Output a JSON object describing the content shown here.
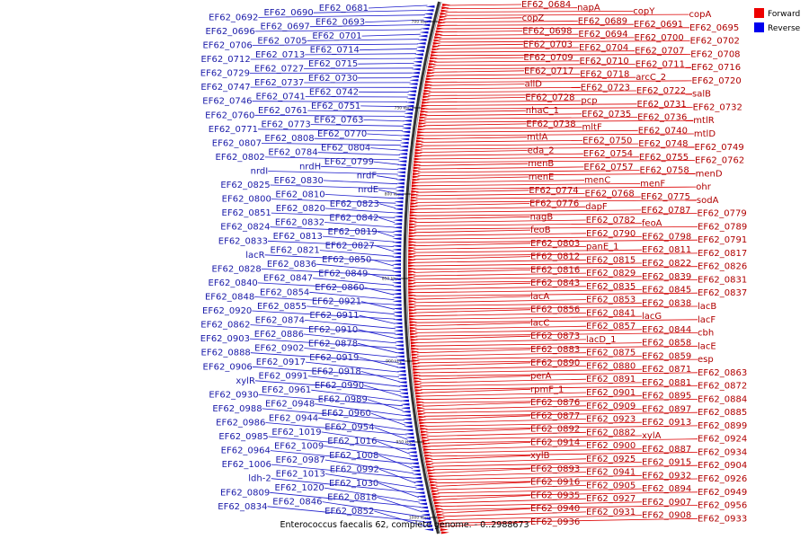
{
  "legend": {
    "forward": {
      "label": "Forward",
      "color": "#ee0000"
    },
    "reverse": {
      "label": "Reverse",
      "color": "#0000ee"
    }
  },
  "caption": "Enterococcus faecalis 62, complete genome. - 0..2988673",
  "scale_ticks": [
    "700 kbp",
    "750 kbp",
    "800 kbp",
    "850 kbp",
    "900 kbp",
    "950 kbp",
    "1000 kbp"
  ],
  "reverse_labels": [
    "EF62_0681",
    "EF62_0690",
    "EF62_0692",
    "EF62_0693",
    "EF62_0697",
    "EF62_0696",
    "EF62_0701",
    "EF62_0705",
    "EF62_0706",
    "EF62_0714",
    "EF62_0713",
    "EF62_0712",
    "EF62_0715",
    "EF62_0727",
    "EF62_0729",
    "EF62_0730",
    "EF62_0737",
    "EF62_0747",
    "EF62_0742",
    "EF62_0741",
    "EF62_0746",
    "EF62_0751",
    "EF62_0761",
    "EF62_0760",
    "EF62_0763",
    "EF62_0773",
    "EF62_0771",
    "EF62_0770",
    "EF62_0808",
    "EF62_0807",
    "EF62_0804",
    "EF62_0784",
    "EF62_0802",
    "EF62_0799",
    "nrdH",
    "nrdI",
    "nrdF",
    "EF62_0830",
    "EF62_0825",
    "nrdE",
    "EF62_0810",
    "EF62_0800",
    "EF62_0823",
    "EF62_0820",
    "EF62_0851",
    "EF62_0842",
    "EF62_0832",
    "EF62_0824",
    "EF62_0819",
    "EF62_0813",
    "EF62_0833",
    "EF62_0827",
    "EF62_0821",
    "lacR",
    "EF62_0850",
    "EF62_0836",
    "EF62_0828",
    "EF62_0849",
    "EF62_0847",
    "EF62_0840",
    "EF62_0860",
    "EF62_0854",
    "EF62_0848",
    "EF62_0921",
    "EF62_0855",
    "EF62_0920",
    "EF62_0911",
    "EF62_0874",
    "EF62_0862",
    "EF62_0910",
    "EF62_0886",
    "EF62_0903",
    "EF62_0878",
    "EF62_0902",
    "EF62_0888",
    "EF62_0919",
    "EF62_0917",
    "EF62_0906",
    "EF62_0918",
    "EF62_0991",
    "xylR",
    "EF62_0990",
    "EF62_0961",
    "EF62_0930",
    "EF62_0989",
    "EF62_0948",
    "EF62_0988",
    "EF62_0960",
    "EF62_0944",
    "EF62_0986",
    "EF62_0954",
    "EF62_1019",
    "EF62_0985",
    "EF62_1016",
    "EF62_1009",
    "EF62_0964",
    "EF62_1008",
    "EF62_0987",
    "EF62_1006",
    "EF62_0992",
    "EF62_1013",
    "ldh-2",
    "EF62_1030",
    "EF62_1020",
    "EF62_0809",
    "EF62_0818",
    "EF62_0846",
    "EF62_0834",
    "EF62_0852"
  ],
  "forward_labels": [
    "EF62_0684",
    "napA",
    "copY",
    "copA",
    "copZ",
    "EF62_0689",
    "EF62_0691",
    "EF62_0695",
    "EF62_0698",
    "EF62_0694",
    "EF62_0700",
    "EF62_0702",
    "EF62_0703",
    "EF62_0704",
    "EF62_0707",
    "EF62_0708",
    "EF62_0709",
    "EF62_0710",
    "EF62_0711",
    "EF62_0716",
    "EF62_0717",
    "EF62_0718",
    "arcC_2",
    "EF62_0720",
    "allD",
    "EF62_0723",
    "EF62_0722",
    "salB",
    "EF62_0728",
    "pcp",
    "EF62_0731",
    "EF62_0732",
    "nhaC_1",
    "EF62_0735",
    "EF62_0736",
    "mtlR",
    "EF62_0738",
    "mltF",
    "EF62_0740",
    "mtlD",
    "mtlA",
    "EF62_0750",
    "EF62_0748",
    "EF62_0749",
    "eda_2",
    "EF62_0754",
    "EF62_0755",
    "EF62_0762",
    "menB",
    "EF62_0757",
    "EF62_0758",
    "menD",
    "menE",
    "menC",
    "menF",
    "ohr",
    "EF62_0774",
    "EF62_0768",
    "EF62_0775",
    "sodA",
    "EF62_0776",
    "dapF",
    "EF62_0787",
    "EF62_0779",
    "nagB",
    "EF62_0782",
    "feoA",
    "EF62_0789",
    "feoB",
    "EF62_0790",
    "EF62_0798",
    "EF62_0791",
    "EF62_0803",
    "panE_1",
    "EF62_0811",
    "EF62_0817",
    "EF62_0812",
    "EF62_0815",
    "EF62_0822",
    "EF62_0826",
    "EF62_0816",
    "EF62_0829",
    "EF62_0839",
    "EF62_0831",
    "EF62_0843",
    "EF62_0835",
    "EF62_0845",
    "EF62_0837",
    "lacA",
    "EF62_0853",
    "EF62_0838",
    "lacB",
    "EF62_0856",
    "EF62_0841",
    "lacG",
    "lacF",
    "lacC",
    "EF62_0857",
    "EF62_0844",
    "cbh",
    "EF62_0873",
    "lacD_1",
    "EF62_0858",
    "lacE",
    "EF62_0883",
    "EF62_0875",
    "EF62_0859",
    "esp",
    "EF62_0890",
    "EF62_0880",
    "EF62_0871",
    "EF62_0863",
    "perA",
    "EF62_0891",
    "EF62_0881",
    "EF62_0872",
    "rpmF_1",
    "EF62_0901",
    "EF62_0895",
    "EF62_0884",
    "EF62_0876",
    "EF62_0909",
    "EF62_0897",
    "EF62_0885",
    "EF62_0877",
    "EF62_0923",
    "EF62_0913",
    "EF62_0899",
    "EF62_0892",
    "EF62_0882",
    "xylA",
    "EF62_0924",
    "EF62_0914",
    "EF62_0900",
    "EF62_0887",
    "EF62_0934",
    "xylB",
    "EF62_0925",
    "EF62_0915",
    "EF62_0904",
    "EF62_0893",
    "EF62_0941",
    "EF62_0932",
    "EF62_0926",
    "EF62_0916",
    "EF62_0905",
    "EF62_0894",
    "EF62_0949",
    "EF62_0935",
    "EF62_0927",
    "EF62_0907",
    "EF62_0956",
    "EF62_0940",
    "EF62_0931",
    "EF62_0908",
    "EF62_0933",
    "EF62_0936"
  ]
}
